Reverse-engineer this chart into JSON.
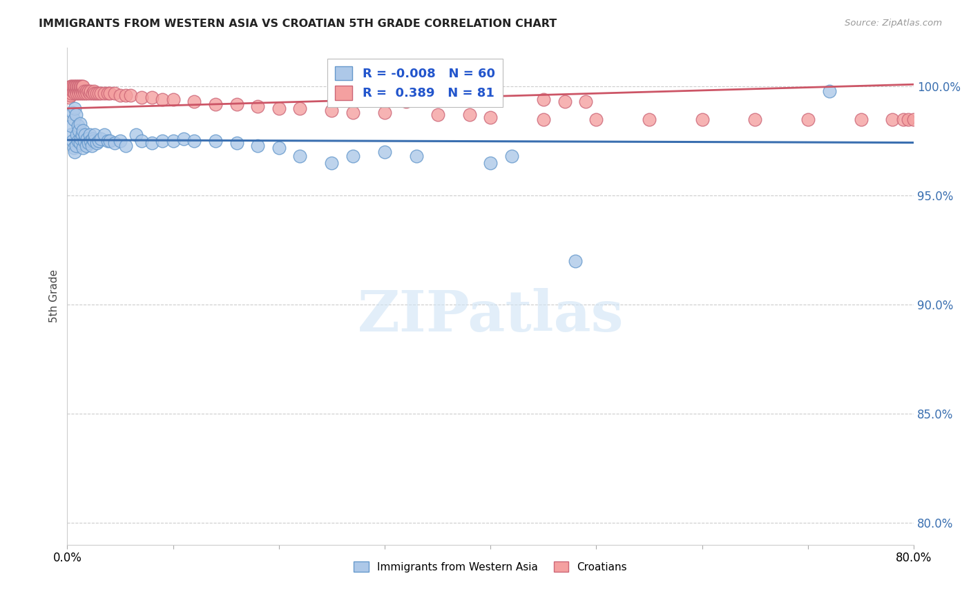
{
  "title": "IMMIGRANTS FROM WESTERN ASIA VS CROATIAN 5TH GRADE CORRELATION CHART",
  "source": "Source: ZipAtlas.com",
  "ylabel": "5th Grade",
  "xlim": [
    0.0,
    80.0
  ],
  "ylim": [
    79.0,
    101.8
  ],
  "yticks": [
    80.0,
    85.0,
    90.0,
    95.0,
    100.0
  ],
  "ytick_labels": [
    "80.0%",
    "85.0%",
    "90.0%",
    "95.0%",
    "100.0%"
  ],
  "xticks": [
    0.0,
    10.0,
    20.0,
    30.0,
    40.0,
    50.0,
    60.0,
    70.0,
    80.0
  ],
  "blue_R": "-0.008",
  "blue_N": "60",
  "pink_R": "0.389",
  "pink_N": "81",
  "blue_face_color": "#adc8e8",
  "blue_edge_color": "#6699cc",
  "pink_face_color": "#f4a0a0",
  "pink_edge_color": "#cc6677",
  "blue_line_color": "#3a6fb0",
  "pink_line_color": "#cc5566",
  "watermark_text": "ZIPatlas",
  "legend_label_color": "#2255cc",
  "ytick_color": "#3a6fb0",
  "blue_scatter_x": [
    0.3,
    0.4,
    0.5,
    0.5,
    0.6,
    0.6,
    0.7,
    0.7,
    0.8,
    0.8,
    0.9,
    1.0,
    1.0,
    1.1,
    1.2,
    1.2,
    1.3,
    1.4,
    1.5,
    1.5,
    1.6,
    1.7,
    1.8,
    1.9,
    2.0,
    2.1,
    2.2,
    2.3,
    2.4,
    2.5,
    2.6,
    2.8,
    3.0,
    3.2,
    3.5,
    3.8,
    4.0,
    4.5,
    5.0,
    5.5,
    6.5,
    7.0,
    8.0,
    9.0,
    10.0,
    11.0,
    12.0,
    14.0,
    16.0,
    18.0,
    20.0,
    22.0,
    25.0,
    27.0,
    30.0,
    33.0,
    40.0,
    42.0,
    48.0,
    72.0
  ],
  "blue_scatter_y": [
    97.8,
    98.2,
    97.5,
    98.8,
    97.2,
    98.5,
    97.0,
    99.0,
    97.3,
    98.7,
    97.8,
    97.5,
    98.2,
    98.0,
    97.4,
    98.3,
    97.6,
    97.8,
    98.0,
    97.2,
    97.5,
    97.8,
    97.3,
    97.6,
    97.4,
    97.8,
    97.5,
    97.3,
    97.6,
    97.5,
    97.8,
    97.4,
    97.5,
    97.6,
    97.8,
    97.5,
    97.5,
    97.4,
    97.5,
    97.3,
    97.8,
    97.5,
    97.4,
    97.5,
    97.5,
    97.6,
    97.5,
    97.5,
    97.4,
    97.3,
    97.2,
    96.8,
    96.5,
    96.8,
    97.0,
    96.8,
    96.5,
    96.8,
    92.0,
    99.8
  ],
  "pink_scatter_x": [
    0.2,
    0.3,
    0.3,
    0.4,
    0.4,
    0.5,
    0.5,
    0.6,
    0.6,
    0.7,
    0.7,
    0.8,
    0.8,
    0.9,
    0.9,
    1.0,
    1.0,
    1.1,
    1.1,
    1.2,
    1.2,
    1.3,
    1.3,
    1.4,
    1.4,
    1.5,
    1.5,
    1.6,
    1.7,
    1.8,
    1.9,
    2.0,
    2.1,
    2.2,
    2.4,
    2.5,
    2.6,
    2.8,
    3.0,
    3.2,
    3.5,
    3.8,
    4.0,
    4.5,
    5.0,
    5.5,
    6.0,
    7.0,
    8.0,
    9.0,
    10.0,
    12.0,
    14.0,
    16.0,
    18.0,
    20.0,
    22.0,
    25.0,
    27.0,
    30.0,
    35.0,
    38.0,
    40.0,
    45.0,
    50.0,
    55.0,
    60.0,
    65.0,
    70.0,
    75.0,
    78.0,
    79.0,
    79.5,
    80.0,
    30.5,
    32.0,
    33.0,
    35.0,
    45.0,
    47.0,
    49.0
  ],
  "pink_scatter_y": [
    99.5,
    99.6,
    100.0,
    99.7,
    100.0,
    99.8,
    100.0,
    99.8,
    100.0,
    99.7,
    100.0,
    99.8,
    100.0,
    99.7,
    100.0,
    99.8,
    100.0,
    99.7,
    100.0,
    99.8,
    100.0,
    99.7,
    100.0,
    99.8,
    100.0,
    99.7,
    100.0,
    99.8,
    99.7,
    99.8,
    99.7,
    99.8,
    99.7,
    99.8,
    99.7,
    99.8,
    99.7,
    99.7,
    99.7,
    99.7,
    99.7,
    99.7,
    99.7,
    99.7,
    99.6,
    99.6,
    99.6,
    99.5,
    99.5,
    99.4,
    99.4,
    99.3,
    99.2,
    99.2,
    99.1,
    99.0,
    99.0,
    98.9,
    98.8,
    98.8,
    98.7,
    98.7,
    98.6,
    98.5,
    98.5,
    98.5,
    98.5,
    98.5,
    98.5,
    98.5,
    98.5,
    98.5,
    98.5,
    98.5,
    99.5,
    99.3,
    99.4,
    99.4,
    99.4,
    99.3,
    99.3
  ],
  "blue_trendline_x": [
    0.0,
    80.0
  ],
  "blue_trendline_y": [
    97.55,
    97.43
  ],
  "pink_trendline_x": [
    0.0,
    80.0
  ],
  "pink_trendline_y": [
    99.0,
    100.1
  ]
}
